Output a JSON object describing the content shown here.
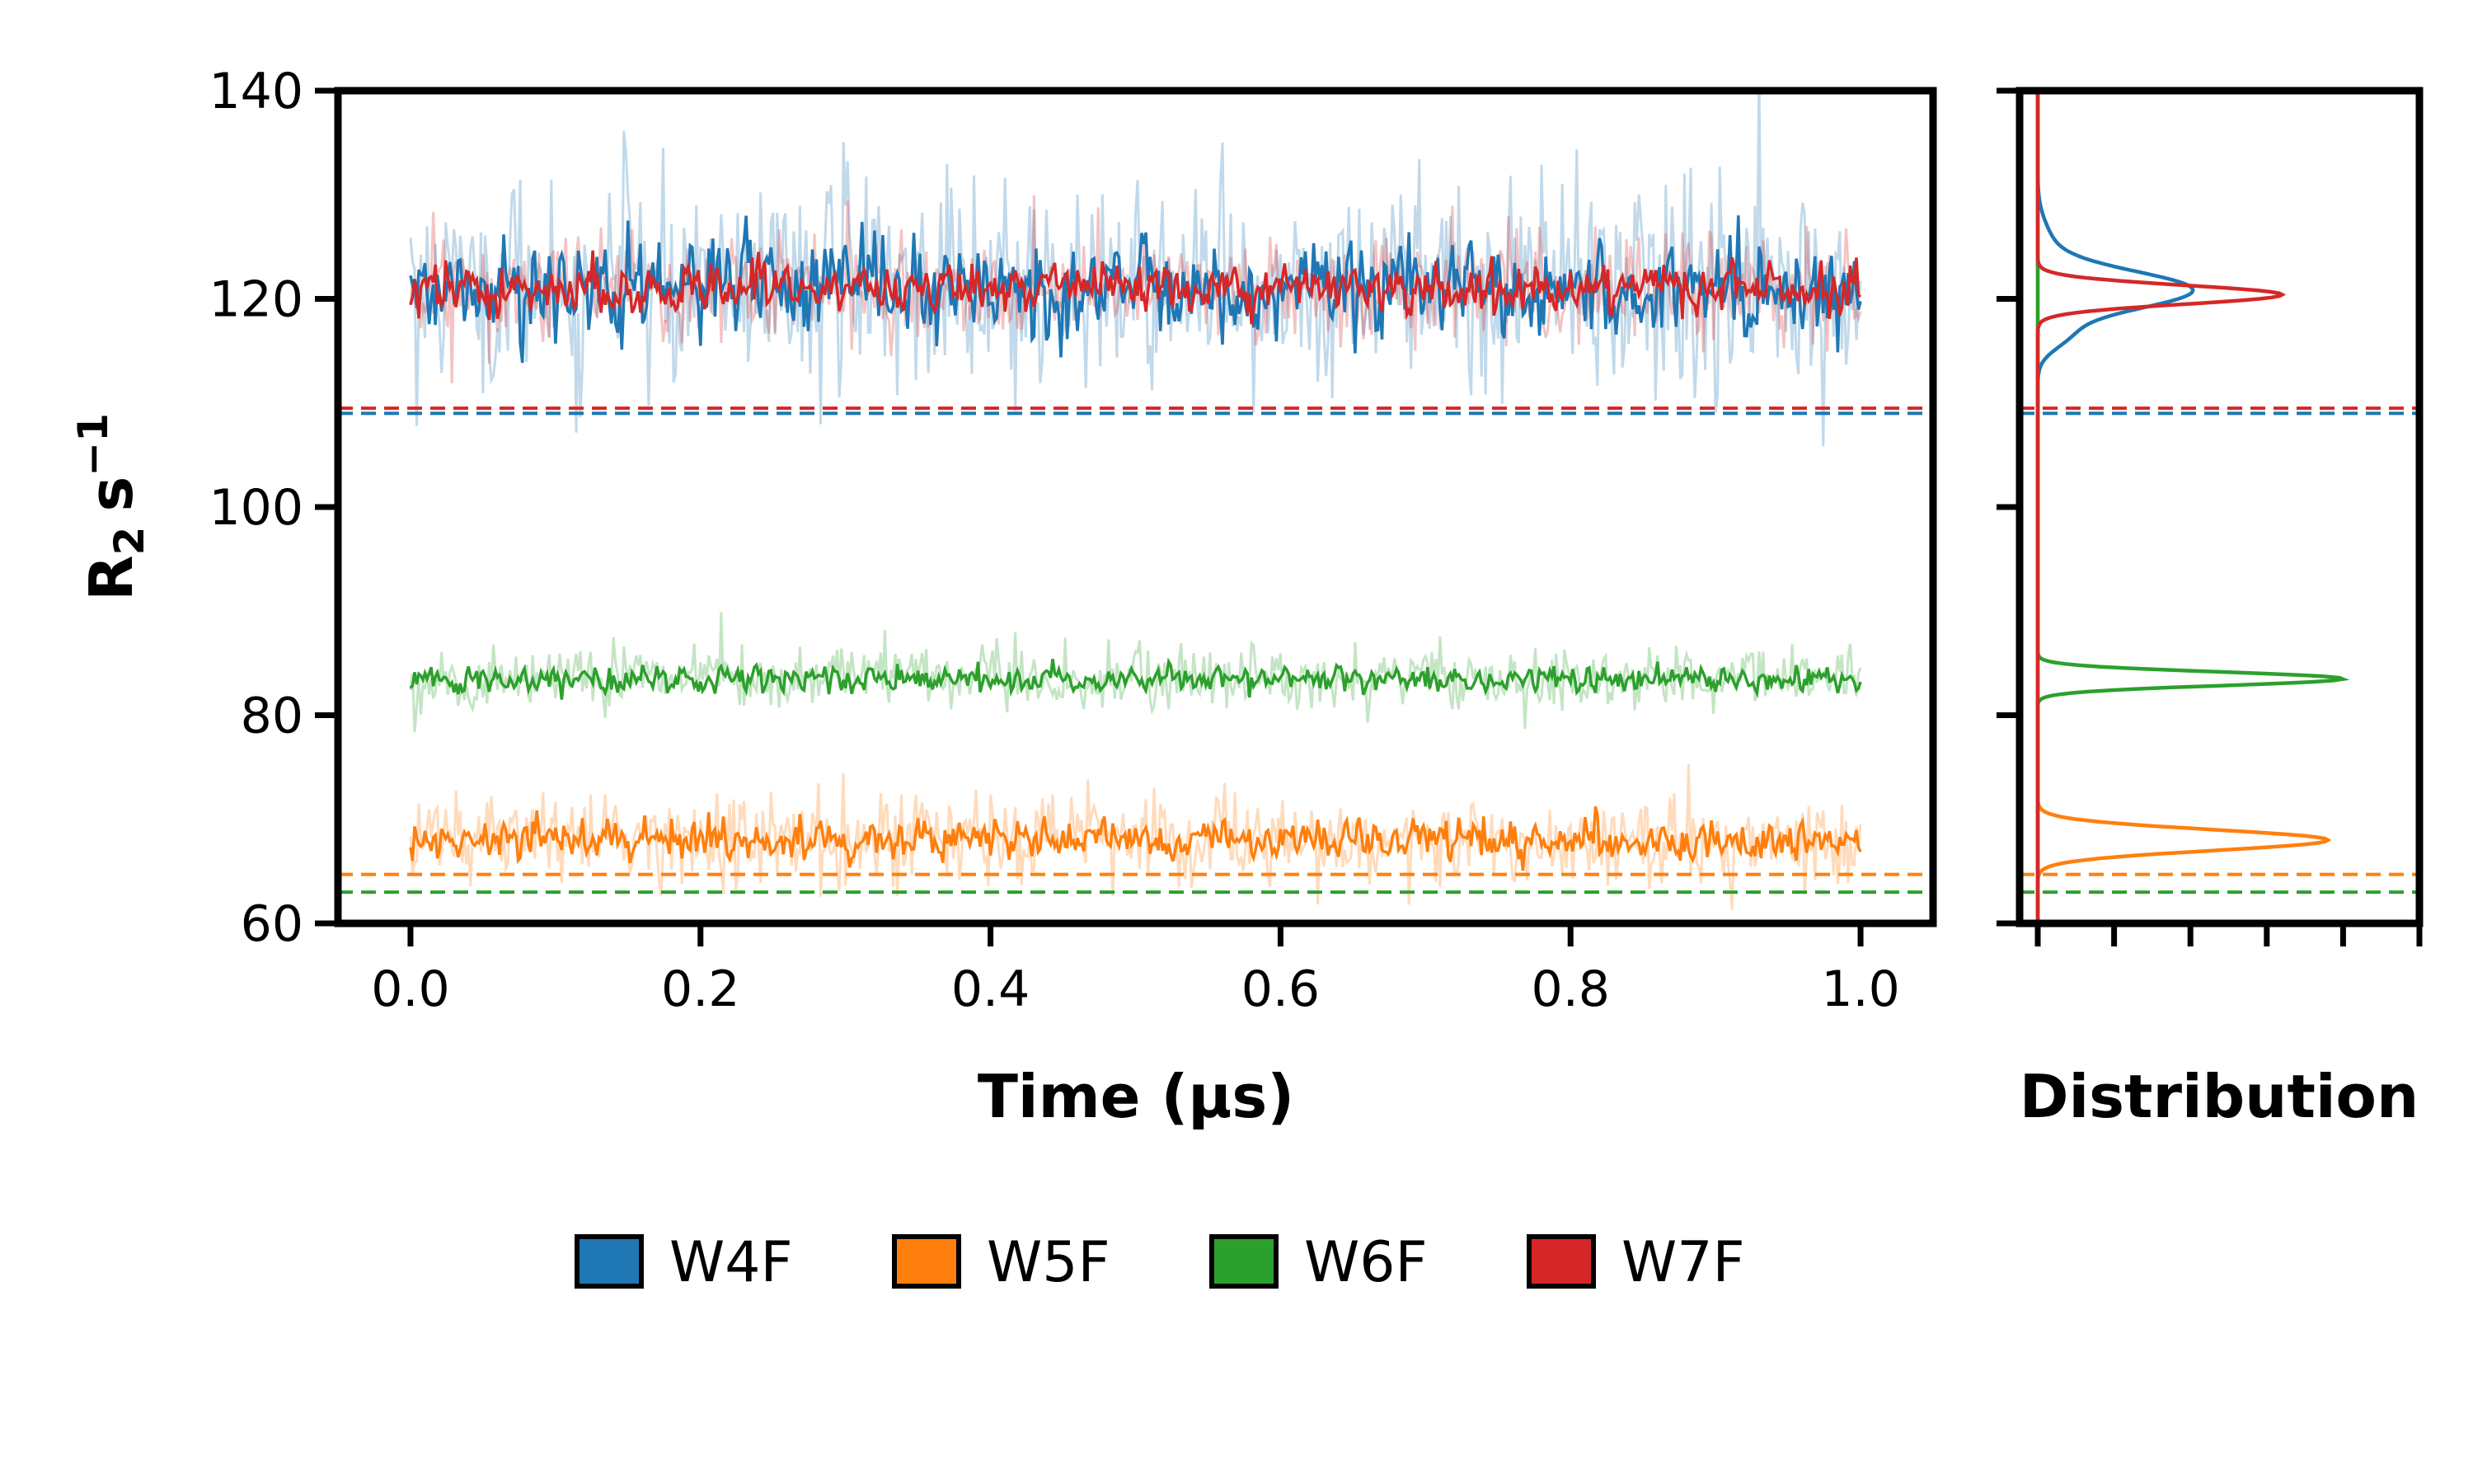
{
  "chart_data": [
    {
      "type": "line",
      "xlabel": "Time (µs)",
      "ylabel": "R₂ s⁻¹",
      "ylabel_main": "R",
      "ylabel_sub": "2",
      "ylabel_unit": "s",
      "ylabel_sup": "−1",
      "xlim": [
        -0.05,
        1.05
      ],
      "ylim": [
        60,
        140
      ],
      "xticks": [
        0.0,
        0.2,
        0.4,
        0.6,
        0.8,
        1.0
      ],
      "xtick_labels": [
        "0.0",
        "0.2",
        "0.4",
        "0.6",
        "0.8",
        "1.0"
      ],
      "yticks": [
        60,
        80,
        100,
        120,
        140
      ],
      "ytick_labels": [
        "60",
        "80",
        "100",
        "120",
        "140"
      ],
      "grid": false,
      "legend_position": "bottom",
      "series": [
        {
          "name": "W4F",
          "color": "#1f77b4",
          "mean": 121.0,
          "noise_band": 6.0,
          "raw_noise": 12.0,
          "reference": 109.0
        },
        {
          "name": "W5F",
          "color": "#ff7f0e",
          "mean": 68.0,
          "noise_band": 2.5,
          "raw_noise": 5.0,
          "reference": 64.7
        },
        {
          "name": "W6F",
          "color": "#2ca02c",
          "mean": 83.5,
          "noise_band": 1.6,
          "raw_noise": 3.5,
          "reference": 63.0
        },
        {
          "name": "W7F",
          "color": "#d62728",
          "mean": 121.0,
          "noise_band": 3.0,
          "raw_noise": 6.0,
          "reference": 109.5
        }
      ]
    },
    {
      "type": "line",
      "xlabel": "Distribution",
      "orientation": "vertical",
      "ylim": [
        60,
        140
      ],
      "xlim": [
        0,
        5
      ],
      "xticks": [
        0,
        1,
        2,
        3,
        4,
        5
      ],
      "series": [
        {
          "name": "W4F",
          "color": "#1f77b4",
          "peak_center": 120.8,
          "peak_width": 1.8,
          "peak_height": 2.0
        },
        {
          "name": "W5F",
          "color": "#ff7f0e",
          "peak_center": 68.0,
          "peak_width": 1.0,
          "peak_height": 3.8
        },
        {
          "name": "W6F",
          "color": "#2ca02c",
          "peak_center": 83.5,
          "peak_width": 0.65,
          "peak_height": 4.0
        },
        {
          "name": "W7F",
          "color": "#d62728",
          "peak_center": 120.4,
          "peak_width": 0.9,
          "peak_height": 3.2
        }
      ]
    }
  ],
  "legend": {
    "items": [
      {
        "label": "W4F",
        "color": "#1f77b4"
      },
      {
        "label": "W5F",
        "color": "#ff7f0e"
      },
      {
        "label": "W6F",
        "color": "#2ca02c"
      },
      {
        "label": "W7F",
        "color": "#d62728"
      }
    ]
  }
}
